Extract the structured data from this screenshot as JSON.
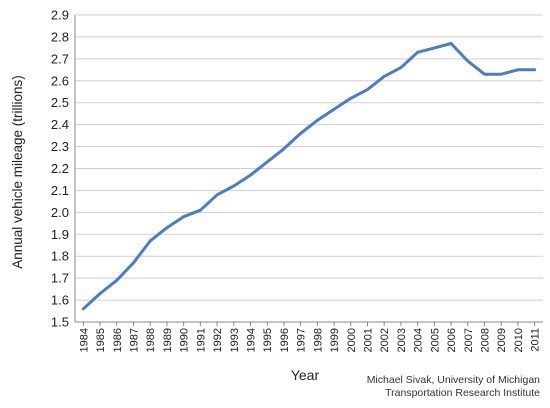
{
  "chart_data": {
    "type": "line",
    "title": "",
    "xlabel": "Year",
    "ylabel": "Annual vehicle mileage (trillions)",
    "ylim": [
      1.5,
      2.9
    ],
    "yticks": [
      "1.5",
      "1.6",
      "1.7",
      "1.8",
      "1.9",
      "2.0",
      "2.1",
      "2.2",
      "2.3",
      "2.4",
      "2.5",
      "2.6",
      "2.7",
      "2.8",
      "2.9"
    ],
    "x": [
      "1984",
      "1985",
      "1986",
      "1987",
      "1988",
      "1989",
      "1990",
      "1991",
      "1992",
      "1993",
      "1994",
      "1995",
      "1996",
      "1997",
      "1998",
      "1999",
      "2000",
      "2001",
      "2002",
      "2003",
      "2004",
      "2005",
      "2006",
      "2007",
      "2008",
      "2009",
      "2010",
      "2011"
    ],
    "series": [
      {
        "values": [
          1.56,
          1.63,
          1.69,
          1.77,
          1.87,
          1.93,
          1.98,
          2.01,
          2.08,
          2.12,
          2.17,
          2.23,
          2.29,
          2.36,
          2.42,
          2.47,
          2.52,
          2.56,
          2.62,
          2.66,
          2.73,
          2.75,
          2.77,
          2.69,
          2.63,
          2.63,
          2.65,
          2.65
        ],
        "color": "#4a7cc7"
      }
    ],
    "grid": true,
    "legend": "none"
  },
  "credit": {
    "line1": "Michael Sivak, University of Michigan",
    "line2": "Transportation Research Institute"
  }
}
